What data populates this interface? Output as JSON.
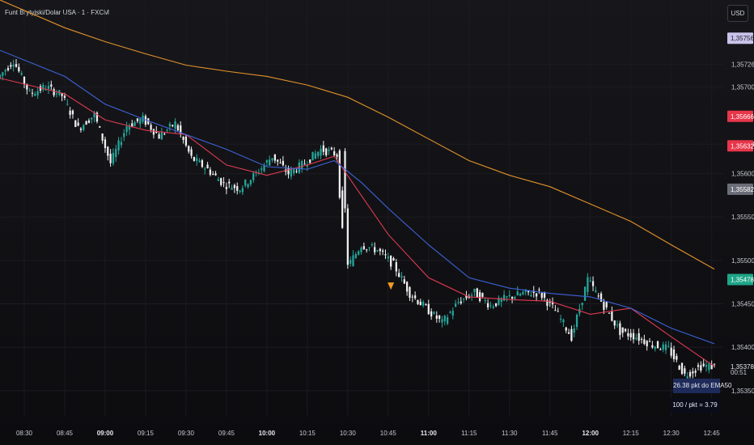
{
  "header": {
    "title": "Funt Brytyjski/Dolar USA · 1 · FXCM",
    "currency": "USD"
  },
  "chart_data": {
    "type": "candlestick",
    "symbol": "GBPUSD",
    "interval_minutes": 1,
    "x_range": [
      "08:21",
      "12:49"
    ],
    "ylim": [
      1.3532,
      1.358
    ],
    "y_ticks": [
      "1,35726",
      "1,35700",
      "1,35634",
      "1,35600",
      "1,35550",
      "1,35500",
      "1,35450",
      "1,35400",
      "1,35350"
    ],
    "x_ticks": [
      {
        "label": "08:30",
        "bold": false
      },
      {
        "label": "08:45",
        "bold": false
      },
      {
        "label": "09:00",
        "bold": true
      },
      {
        "label": "09:15",
        "bold": false
      },
      {
        "label": "09:30",
        "bold": false
      },
      {
        "label": "09:45",
        "bold": false
      },
      {
        "label": "10:00",
        "bold": true
      },
      {
        "label": "10:15",
        "bold": false
      },
      {
        "label": "10:30",
        "bold": false
      },
      {
        "label": "10:45",
        "bold": false
      },
      {
        "label": "11:00",
        "bold": true
      },
      {
        "label": "11:15",
        "bold": false
      },
      {
        "label": "11:30",
        "bold": false
      },
      {
        "label": "11:45",
        "bold": false
      },
      {
        "label": "12:00",
        "bold": true
      },
      {
        "label": "12:15",
        "bold": false
      },
      {
        "label": "12:30",
        "bold": false
      },
      {
        "label": "12:45",
        "bold": false
      }
    ],
    "price_series": [
      [
        "08:21",
        1.3571
      ],
      [
        "08:27",
        1.3573
      ],
      [
        "08:33",
        1.35692
      ],
      [
        "08:39",
        1.357
      ],
      [
        "08:45",
        1.3569
      ],
      [
        "08:51",
        1.35652
      ],
      [
        "08:57",
        1.35668
      ],
      [
        "09:03",
        1.35612
      ],
      [
        "09:09",
        1.35655
      ],
      [
        "09:15",
        1.35663
      ],
      [
        "09:21",
        1.35643
      ],
      [
        "09:27",
        1.35658
      ],
      [
        "09:33",
        1.35618
      ],
      [
        "09:39",
        1.35605
      ],
      [
        "09:45",
        1.35588
      ],
      [
        "09:51",
        1.35583
      ],
      [
        "09:57",
        1.356
      ],
      [
        "10:03",
        1.3562
      ],
      [
        "10:09",
        1.356
      ],
      [
        "10:15",
        1.35612
      ],
      [
        "10:21",
        1.35628
      ],
      [
        "10:27",
        1.35622
      ],
      [
        "10:30",
        1.35488
      ],
      [
        "10:36",
        1.35518
      ],
      [
        "10:42",
        1.35512
      ],
      [
        "10:48",
        1.35495
      ],
      [
        "10:54",
        1.35462
      ],
      [
        "11:00",
        1.35445
      ],
      [
        "11:06",
        1.35428
      ],
      [
        "11:12",
        1.35452
      ],
      [
        "11:18",
        1.35463
      ],
      [
        "11:24",
        1.35448
      ],
      [
        "11:30",
        1.35457
      ],
      [
        "11:36",
        1.35462
      ],
      [
        "11:42",
        1.35463
      ],
      [
        "11:48",
        1.35442
      ],
      [
        "11:54",
        1.35412
      ],
      [
        "12:00",
        1.35478
      ],
      [
        "12:06",
        1.35448
      ],
      [
        "12:12",
        1.35418
      ],
      [
        "12:18",
        1.35412
      ],
      [
        "12:24",
        1.35403
      ],
      [
        "12:30",
        1.35398
      ],
      [
        "12:36",
        1.35368
      ],
      [
        "12:42",
        1.35378
      ],
      [
        "12:46",
        1.35378
      ]
    ],
    "series": [
      {
        "name": "",
        "color": "#e03a52",
        "points": [
          [
            "08:21",
            1.3571
          ],
          [
            "08:45",
            1.35692
          ],
          [
            "09:00",
            1.35662
          ],
          [
            "09:15",
            1.3565
          ],
          [
            "09:30",
            1.35645
          ],
          [
            "09:45",
            1.3561
          ],
          [
            "10:00",
            1.35598
          ],
          [
            "10:15",
            1.3561
          ],
          [
            "10:25",
            1.3562
          ],
          [
            "10:35",
            1.35575
          ],
          [
            "10:45",
            1.3553
          ],
          [
            "11:00",
            1.3548
          ],
          [
            "11:15",
            1.35458
          ],
          [
            "11:30",
            1.35455
          ],
          [
            "11:45",
            1.35453
          ],
          [
            "12:00",
            1.35438
          ],
          [
            "12:15",
            1.35445
          ],
          [
            "12:30",
            1.35412
          ],
          [
            "12:46",
            1.35378
          ]
        ]
      },
      {
        "name": "EMA50",
        "color": "#3d63d8",
        "points": [
          [
            "08:21",
            1.35742
          ],
          [
            "08:45",
            1.35712
          ],
          [
            "09:00",
            1.3568
          ],
          [
            "09:15",
            1.35662
          ],
          [
            "09:30",
            1.35645
          ],
          [
            "09:45",
            1.35628
          ],
          [
            "10:00",
            1.35608
          ],
          [
            "10:15",
            1.35605
          ],
          [
            "10:25",
            1.35615
          ],
          [
            "10:35",
            1.3559
          ],
          [
            "10:45",
            1.3556
          ],
          [
            "11:00",
            1.35518
          ],
          [
            "11:15",
            1.3548
          ],
          [
            "11:30",
            1.35468
          ],
          [
            "11:45",
            1.35462
          ],
          [
            "12:00",
            1.35458
          ],
          [
            "12:15",
            1.35445
          ],
          [
            "12:30",
            1.35422
          ],
          [
            "12:46",
            1.35404
          ]
        ]
      },
      {
        "name": "",
        "color": "#e3922a",
        "points": [
          [
            "08:21",
            1.358
          ],
          [
            "08:45",
            1.35768
          ],
          [
            "09:00",
            1.35752
          ],
          [
            "09:15",
            1.35738
          ],
          [
            "09:30",
            1.35725
          ],
          [
            "09:45",
            1.35718
          ],
          [
            "10:00",
            1.35712
          ],
          [
            "10:15",
            1.35702
          ],
          [
            "10:30",
            1.35688
          ],
          [
            "10:45",
            1.35665
          ],
          [
            "11:00",
            1.3564
          ],
          [
            "11:15",
            1.35615
          ],
          [
            "11:30",
            1.35598
          ],
          [
            "11:45",
            1.35585
          ],
          [
            "12:00",
            1.35565
          ],
          [
            "12:15",
            1.35545
          ],
          [
            "12:30",
            1.35518
          ],
          [
            "12:46",
            1.3549
          ]
        ]
      }
    ],
    "price_tags": [
      {
        "label": "1,35756",
        "value": 1.35756,
        "bg": "#c9c2ea",
        "fg": "#22232b"
      },
      {
        "label": "1,35666",
        "value": 1.35666,
        "bg": "#e8364a",
        "fg": "#ffffff"
      },
      {
        "label": "1,35632",
        "value": 1.35632,
        "bg": "#e8364a",
        "fg": "#ffffff"
      },
      {
        "label": "1,35582",
        "value": 1.35582,
        "bg": "#6b6e78",
        "fg": "#ffffff"
      },
      {
        "label": "1,35478",
        "value": 1.35478,
        "bg": "#1ea587",
        "fg": "#ffffff"
      },
      {
        "label": "1,35378",
        "value": 1.35378,
        "bg": "#0e0f12",
        "fg": "#e6e8ee"
      }
    ],
    "marker": {
      "time": "10:46",
      "value": 1.3547,
      "shape": "triangle-down",
      "color": "#f39c1f"
    },
    "countdown": "00:51",
    "annotations": [
      "26.38 pkt do EMA50",
      "100 / pkt = 3.79"
    ]
  }
}
